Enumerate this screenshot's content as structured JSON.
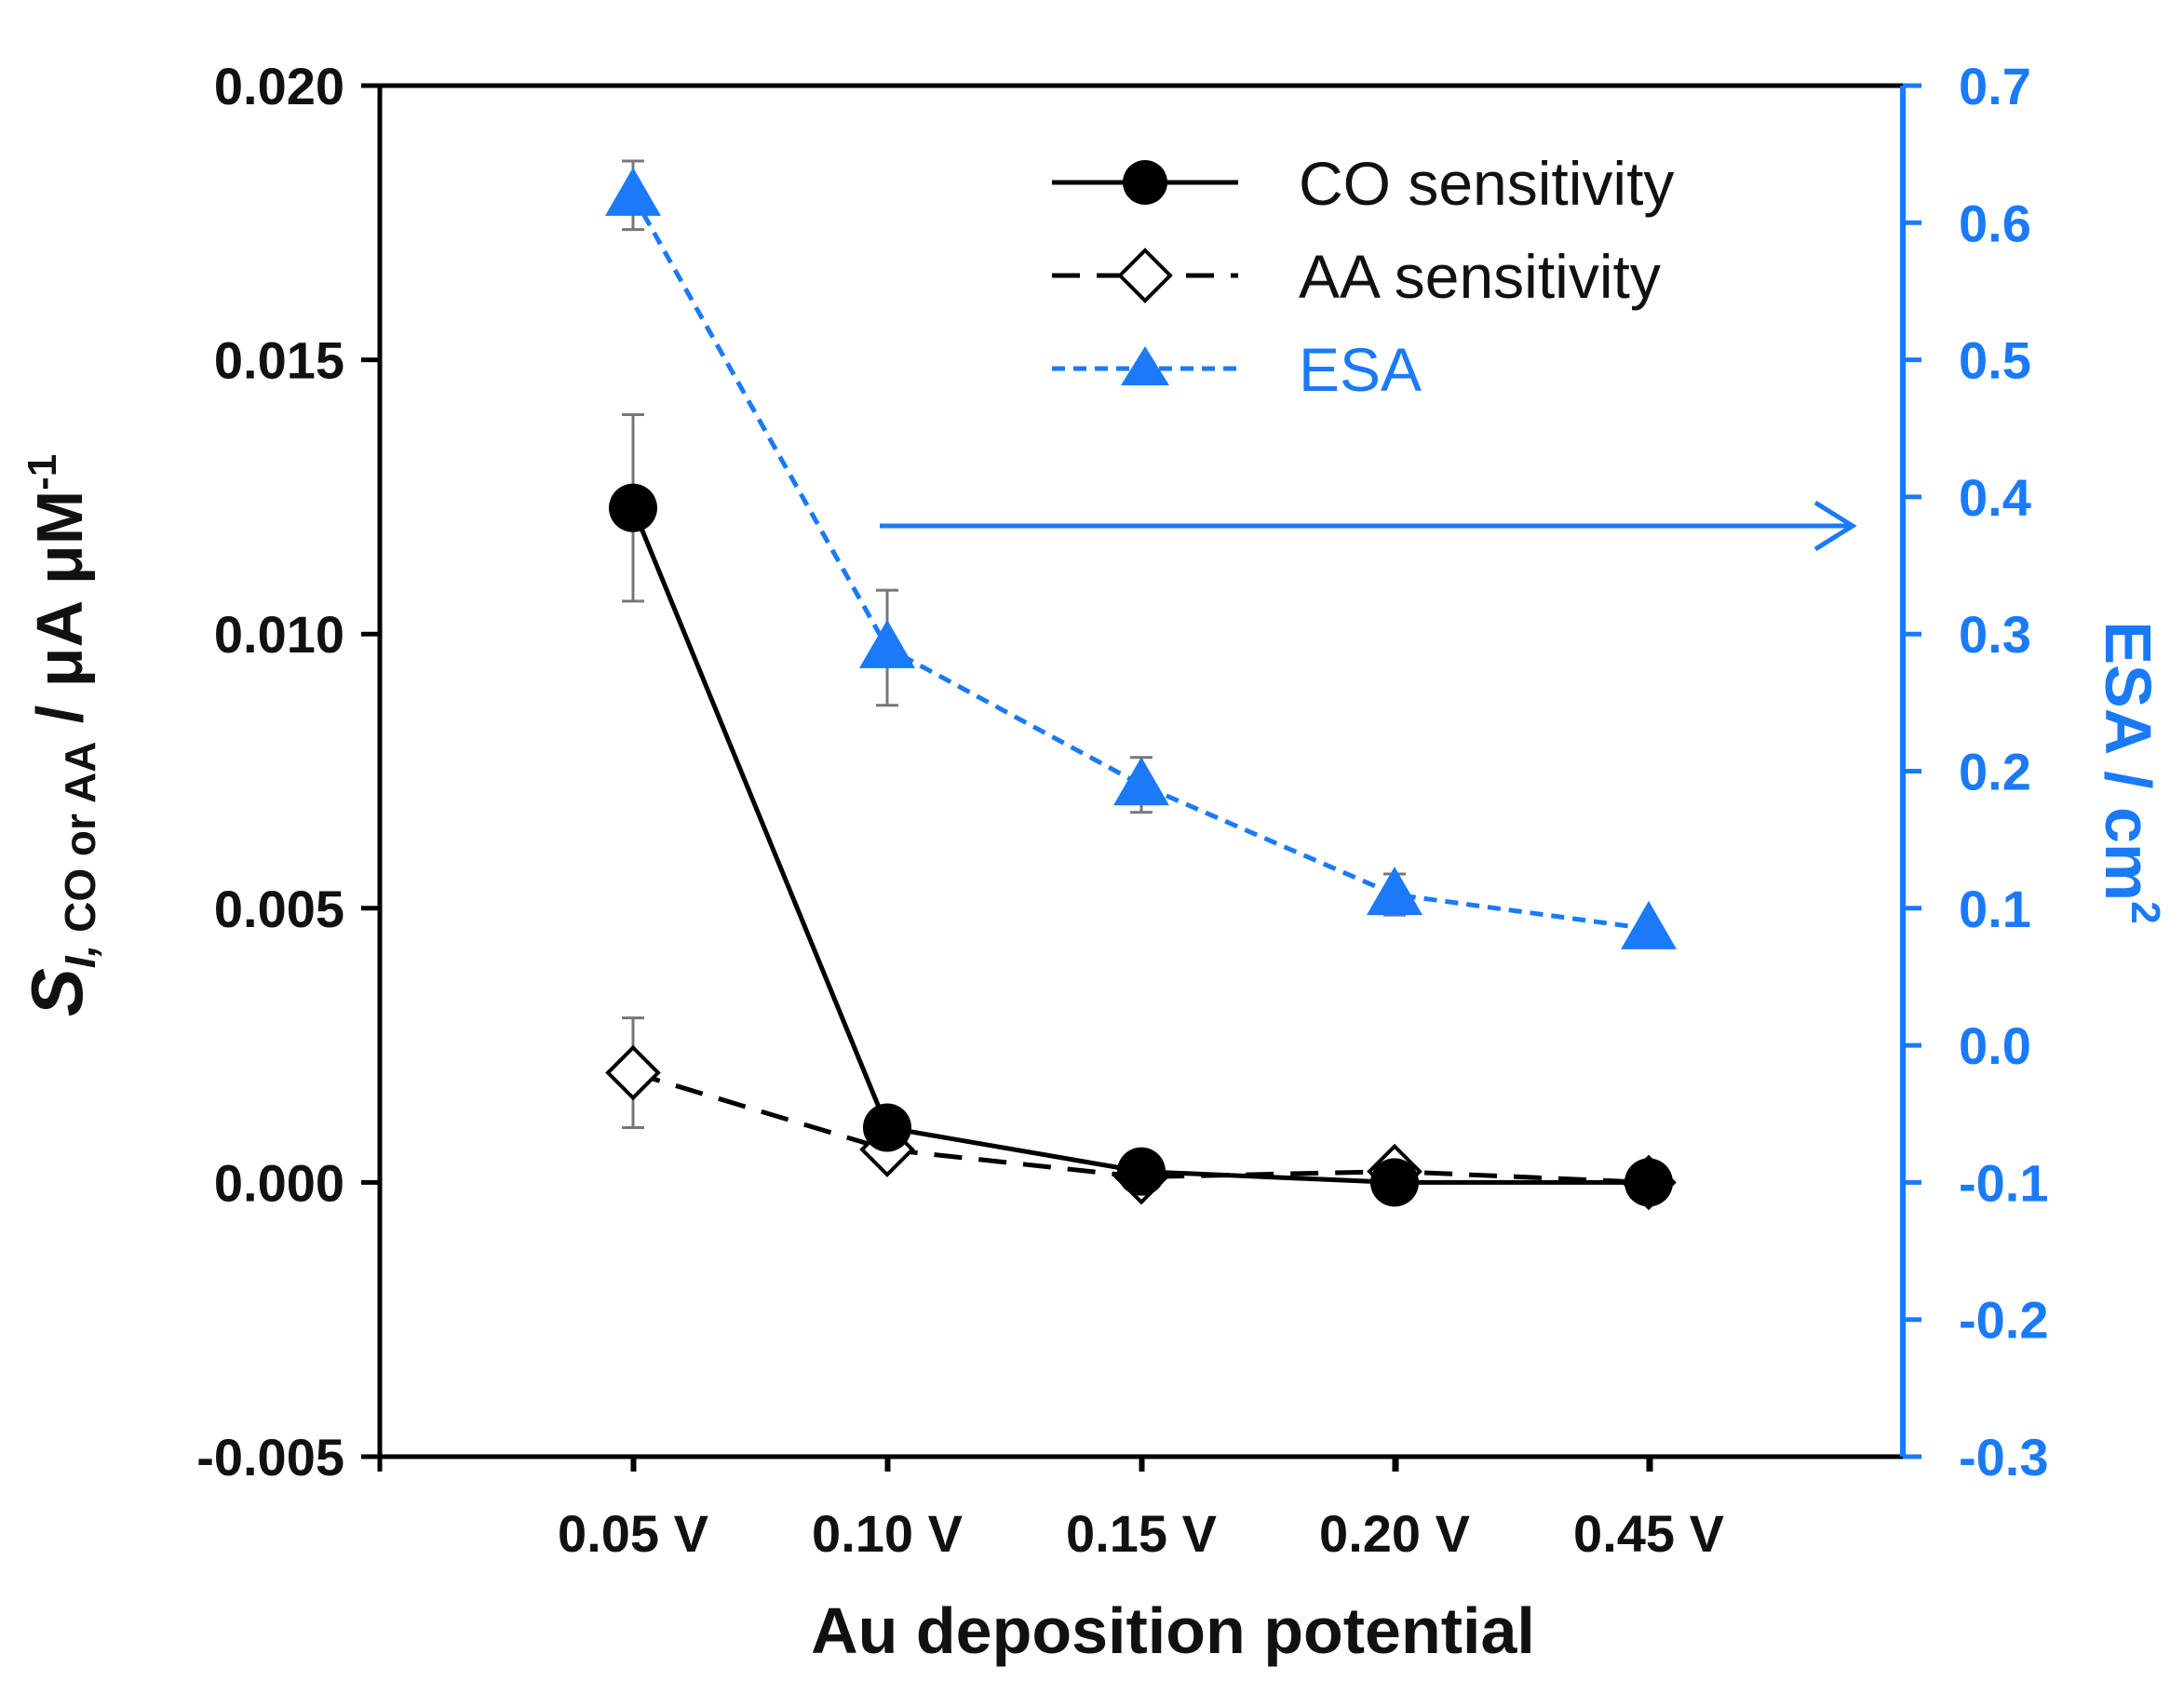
{
  "chart_data": {
    "type": "line",
    "categories": [
      "0.05 V",
      "0.10 V",
      "0.15 V",
      "0.20 V",
      "0.45 V"
    ],
    "xlabel": "Au deposition potential",
    "ylabel": {
      "S": "S",
      "sub_italic": "I,",
      "sub_normal": " CO or AA",
      "units": " / μA μM",
      "sup": "-1"
    },
    "y2label": {
      "main": "ESA / cm",
      "sup": "2"
    },
    "ylim": [
      -0.005,
      0.02
    ],
    "y2lim": [
      -0.3,
      0.7
    ],
    "yticks": [
      "-0.005",
      "0.000",
      "0.005",
      "0.010",
      "0.015",
      "0.020"
    ],
    "yticks_values": [
      -0.005,
      0.0,
      0.005,
      0.01,
      0.015,
      0.02
    ],
    "y2ticks": [
      "-0.3",
      "-0.2",
      "-0.1",
      "0.0",
      "0.1",
      "0.2",
      "0.3",
      "0.4",
      "0.5",
      "0.6",
      "0.7"
    ],
    "y2ticks_values": [
      -0.3,
      -0.2,
      -0.1,
      0.0,
      0.1,
      0.2,
      0.3,
      0.4,
      0.5,
      0.6,
      0.7
    ],
    "series": [
      {
        "name": "CO sensitivity",
        "axis": "left",
        "values": [
          0.0123,
          0.001,
          0.0002,
          0.0,
          0.0
        ],
        "errors": [
          0.0017,
          0.0,
          0.0,
          0.0,
          0.0
        ],
        "marker": "circle-filled",
        "line": "solid",
        "color": "#000000"
      },
      {
        "name": "AA sensitivity",
        "axis": "left",
        "values": [
          0.002,
          0.0006,
          0.0001,
          0.0002,
          0.0
        ],
        "errors": [
          0.001,
          0.0,
          0.0,
          0.0,
          0.0
        ],
        "marker": "diamond-open",
        "line": "dashed",
        "color": "#000000"
      },
      {
        "name": "ESA",
        "axis": "right",
        "values": [
          0.62,
          0.29,
          0.19,
          0.11,
          0.085
        ],
        "errors": [
          0.025,
          0.042,
          0.02,
          0.015,
          0.0
        ],
        "marker": "triangle-filled",
        "line": "dotted",
        "color": "#1a7af8"
      }
    ],
    "annotation": "arrow pointing to right axis",
    "legend_position": "top-right"
  }
}
